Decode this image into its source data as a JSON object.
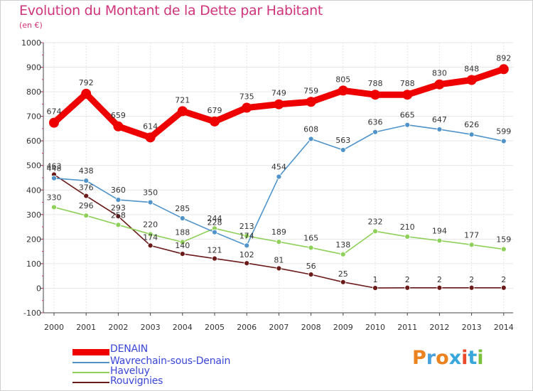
{
  "title": "Evolution du Montant de la Dette par Habitant",
  "subtitle": "(en €)",
  "logo": {
    "text": "Proxiti",
    "colors": [
      "#e9821f",
      "#4aa0d9",
      "#e9821f",
      "#3aa7db",
      "#e94b2a",
      "#3aa7db",
      "#7bbf3a"
    ]
  },
  "chart_data": {
    "type": "line",
    "title": "Evolution du Montant de la Dette par Habitant",
    "subtitle": "(en €)",
    "xlabel": "",
    "ylabel": "",
    "x": [
      "2000",
      "2001",
      "2002",
      "2003",
      "2004",
      "2005",
      "2006",
      "2007",
      "2008",
      "2009",
      "2010",
      "2011",
      "2012",
      "2013",
      "2014"
    ],
    "ylim": [
      -100,
      1000
    ],
    "yticks": [
      "-100",
      "0",
      "100",
      "200",
      "300",
      "400",
      "500",
      "600",
      "700",
      "800",
      "900",
      "1000"
    ],
    "grid": true,
    "legend_position": "bottom-left",
    "series": [
      {
        "name": "DENAIN",
        "color": "#ee0000",
        "values": [
          674,
          792,
          659,
          614,
          721,
          679,
          735,
          749,
          759,
          805,
          788,
          788,
          830,
          848,
          892
        ]
      },
      {
        "name": "Wavrechain-sous-Denain",
        "color": "#4f93c9",
        "values": [
          448,
          438,
          360,
          350,
          285,
          228,
          174,
          454,
          608,
          563,
          636,
          665,
          647,
          626,
          599
        ]
      },
      {
        "name": "Haveluy",
        "color": "#8fd05a",
        "values": [
          330,
          296,
          258,
          220,
          188,
          244,
          213,
          189,
          165,
          138,
          232,
          210,
          194,
          177,
          159
        ]
      },
      {
        "name": "Rouvignies",
        "color": "#6b1a1a",
        "values": [
          463,
          376,
          293,
          174,
          140,
          121,
          102,
          81,
          56,
          25,
          1,
          2,
          2,
          2,
          2
        ]
      }
    ]
  }
}
